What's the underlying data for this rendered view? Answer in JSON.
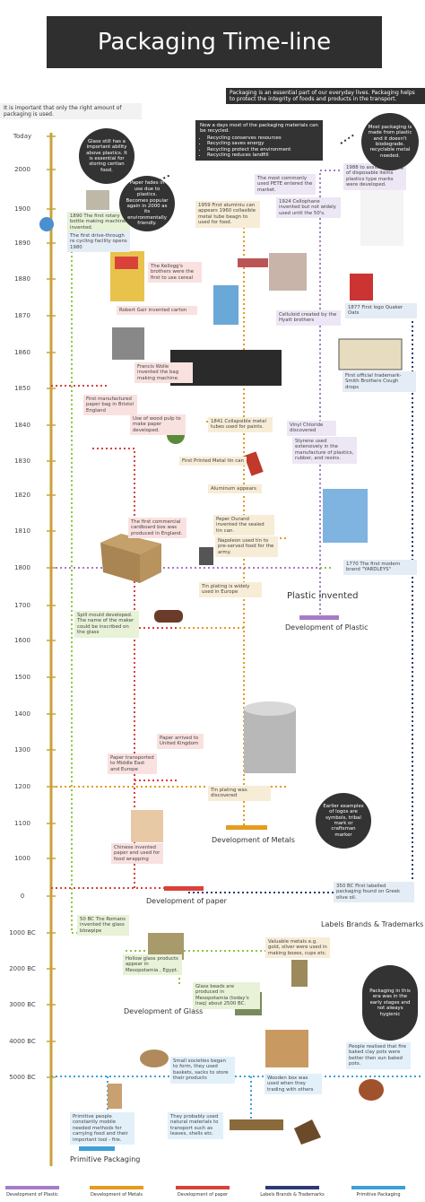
{
  "title": "Packaging Time-line",
  "intro": {
    "left": "It is important that only the right amount of packaging is used.",
    "right": "Packaging is an essential part of our everyday lives. Packaging helps to protect the integrity of foods and products in the transport."
  },
  "axis_labels": [
    "Today",
    "2000",
    "1900",
    "1890",
    "1880",
    "1870",
    "1860",
    "1850",
    "1840",
    "1830",
    "1820",
    "1810",
    "1800",
    "1700",
    "1600",
    "1500",
    "1400",
    "1300",
    "1200",
    "1100",
    "1000",
    "0",
    "1000 BC",
    "2000 BC",
    "3000 BC",
    "4000 BC",
    "5000 BC"
  ],
  "recycling": {
    "heading": "Now a days most of the packaging materials can be recycled.",
    "bullets": [
      "Recycling conserves resources",
      "Recycling saves energy",
      "Recycling protect the environment",
      "Recycling reduces landfill"
    ]
  },
  "notes": [
    "Glass still has a important ability above plastics. It is essential for storing certian food.",
    "1890 The first rotary bottle making machine invented.",
    "The first drive-through re cycling facility opens 1980",
    "Paper fades in use due to plastics. Becomes popular again in 2000 as its environmentally friendly.",
    "1959 First aluminiu can appears 1960 collasible metal tube beagn to used for food.",
    "The most commonly used PETE entered the market.",
    "1924 Cellophane invented but not widely used until the 50's.",
    "1988 to assist recycling of disposable items plastics type marks were developed.",
    "Most packaging is made from plastic and it doesn't biodegrade. recyclable metal needed.",
    "The Kellogg's brothers were the first to use cereal",
    "Robert Gair invented carton",
    "Celluloid created by the Hyatt brothers",
    "1877 First logo Quaker Oats",
    "Francis Wolle invented the bag making machine.",
    "First official trademark- Smith Brothers Cough drops",
    "First manufactured paper bag in Bristol England",
    "Use of wood pulp to make paper developed.",
    "1841 Collapsible metal tubes used for paints.",
    "Vinyl Chloride discovered",
    "Styrene used extensively in the manufacture of plastics, rubber, and resins.",
    "First Printed Metal tin can",
    "Aluminum appears",
    "The first commercial cardboard box was produced in England.",
    "Peper Durand invented the sealed tin can.",
    "Napoleon used tin to pre-served food for the army.",
    "1770 The first modern brand \"YARDLEYS\"",
    "Tin plating is widely used in Europe",
    "Spill mould developed. The name of the maker could be inscribed on the glass",
    "Paper arrived to United Kingdom",
    "Paper transported to Middle East and Europe",
    "Tin plating was discovered",
    "Earlier examples of logos are symbols, tribal mark or craftsman marker",
    "Chinese invented paper and used for food wrapping",
    "350 BC First labelled packaging found on Greek olive oil.",
    "50 BC The Romans invented the glass blowpipe",
    "Hollow glass products appear in Mesopotamia , Egypt.",
    "Valuable metals e.g. gold, silver were used in making boxes, cups etc.",
    "Packaging in this era was in the early stages and not always hygienic",
    "Glass beads are produced in Mesopotamia (today's Iraq) about 2500 BC.",
    "Small societies began to form, they used baskets, sacks to store their products",
    "People realised that fire baked clay pots were better then sun baked pots.",
    "Wooden box was used when they trading with others",
    "Primitive people constantly mobile needed methods for carrying food and their important tool - fire.",
    "They probably used natural materials to transport such as leaves, shells etc."
  ],
  "sections": [
    "Plastic invented",
    "Development of Plastic",
    "Development of Metals",
    "Development of paper",
    "Labels Brands & Trademarks",
    "Development of Glass",
    "Primitive Packaging"
  ],
  "legend": [
    "Development of Plastic",
    "Development of Metals",
    "Development of paper",
    "Labels Brands & Trademarks",
    "Primitive Packaging"
  ]
}
